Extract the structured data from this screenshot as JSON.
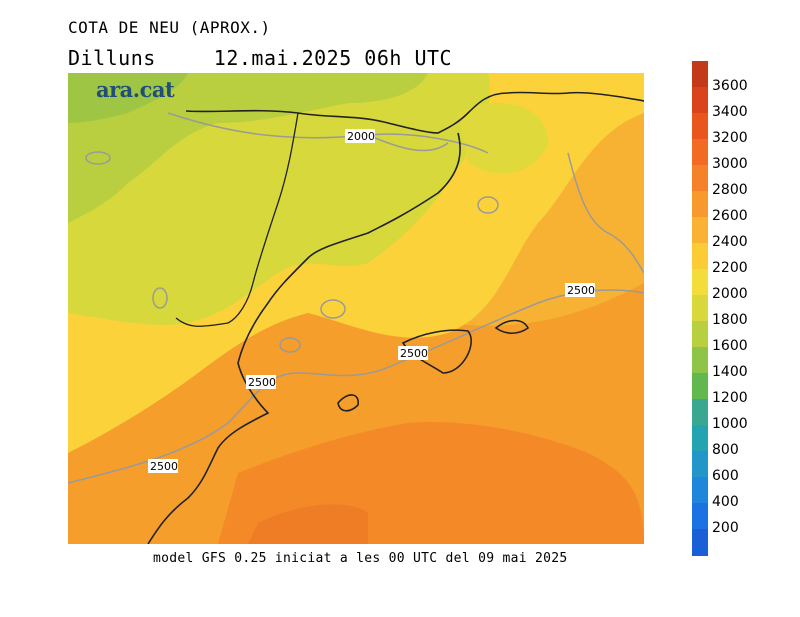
{
  "header": {
    "title": "COTA DE NEU (APROX.)",
    "day": "Dilluns",
    "datetime": "12.mai.2025 06h UTC"
  },
  "logo": {
    "text": "ara.cat"
  },
  "footer": {
    "text": "model GFS 0.25 iniciat a les 00 UTC del 09 mai 2025"
  },
  "contour_labels": [
    "2000",
    "2500",
    "2500",
    "2500",
    "2500"
  ],
  "colorbar": {
    "labels": [
      "3600",
      "3400",
      "3200",
      "3000",
      "2800",
      "2600",
      "2400",
      "2200",
      "2000",
      "1800",
      "1600",
      "1400",
      "1200",
      "1000",
      "800",
      "600",
      "400",
      "200"
    ],
    "colors": [
      "#c23a1a",
      "#d9441c",
      "#e8561e",
      "#f26b24",
      "#f5822a",
      "#f7992d",
      "#f9b233",
      "#fbcc36",
      "#f3dd3a",
      "#d8d83c",
      "#b8cf3f",
      "#8ec447",
      "#62b84f",
      "#3aa88e",
      "#24a3b0",
      "#2296c8",
      "#1f86db",
      "#1c72e2",
      "#1a5fd6"
    ]
  }
}
